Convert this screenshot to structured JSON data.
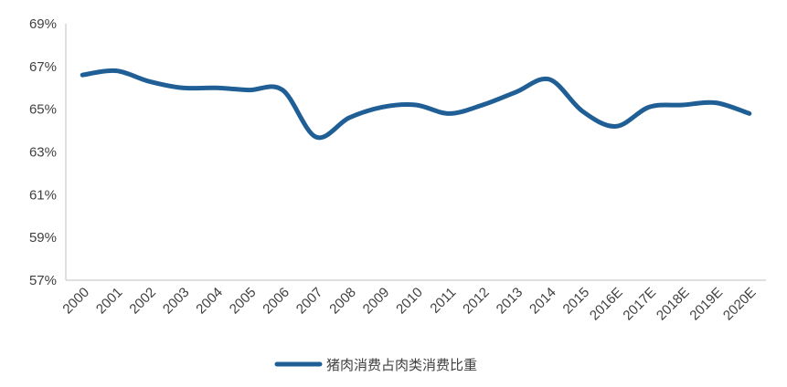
{
  "chart_data": {
    "type": "line",
    "categories": [
      "2000",
      "2001",
      "2002",
      "2003",
      "2004",
      "2005",
      "2006",
      "2007",
      "2008",
      "2009",
      "2010",
      "2011",
      "2012",
      "2013",
      "2014",
      "2015",
      "2016E",
      "2017E",
      "2018E",
      "2019E",
      "2020E"
    ],
    "y_tick_labels": [
      "57%",
      "59%",
      "61%",
      "63%",
      "65%",
      "67%",
      "69%"
    ],
    "ylim": [
      57,
      69
    ],
    "series": [
      {
        "name": "猪肉消费占肉类消费比重",
        "color": "#1f5f96",
        "values": [
          66.6,
          66.8,
          66.3,
          66.0,
          66.0,
          65.9,
          65.9,
          63.7,
          64.6,
          65.1,
          65.2,
          64.8,
          65.2,
          65.8,
          66.4,
          64.9,
          64.2,
          65.1,
          65.2,
          65.3,
          64.8
        ]
      }
    ],
    "grid": false,
    "legend_position": "bottom"
  }
}
